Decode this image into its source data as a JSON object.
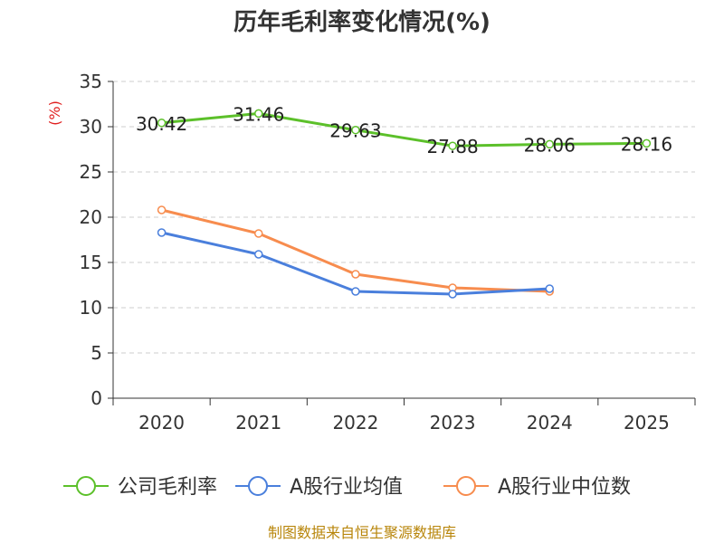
{
  "chart_data": {
    "type": "line",
    "title": "历年毛利率变化情况(%)",
    "ylabel": "(%)",
    "xlabel": "",
    "categories": [
      "2020",
      "2021",
      "2022",
      "2023",
      "2024",
      "2025"
    ],
    "ylim": [
      0,
      35
    ],
    "yticks": [
      0,
      5,
      10,
      15,
      20,
      25,
      30,
      35
    ],
    "grid": true,
    "legend_position": "bottom",
    "series": [
      {
        "name": "公司毛利率",
        "color": "#5cc02a",
        "values": [
          30.42,
          31.46,
          29.63,
          27.88,
          28.06,
          28.16
        ],
        "data_labels": [
          "30.42",
          "31.46",
          "29.63",
          "27.88",
          "28.06",
          "28.16"
        ]
      },
      {
        "name": "A股行业均值",
        "color": "#4a7fdc",
        "values": [
          18.3,
          15.9,
          11.8,
          11.5,
          12.1,
          null
        ]
      },
      {
        "name": "A股行业中位数",
        "color": "#f78c4e",
        "values": [
          20.8,
          18.2,
          13.7,
          12.2,
          11.8,
          null
        ]
      }
    ]
  },
  "source": "制图数据来自恒生聚源数据库"
}
